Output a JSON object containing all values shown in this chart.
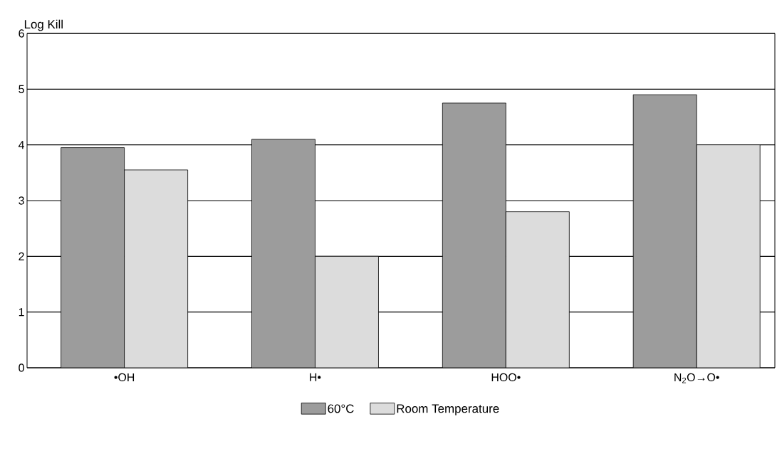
{
  "chart_data": {
    "type": "bar",
    "ylabel": "Log Kill",
    "categories": [
      "•OH",
      "H•",
      "HOO•",
      "N$_{2}$O→O•"
    ],
    "series": [
      {
        "name": "60°C",
        "color": "#9c9c9c",
        "values": [
          3.95,
          4.1,
          4.75,
          4.9
        ]
      },
      {
        "name": "Room Temperature",
        "color": "#dcdcdc",
        "values": [
          3.55,
          2.0,
          2.8,
          4.0
        ]
      }
    ],
    "ylim": [
      0,
      6
    ],
    "yticks": [
      0,
      1,
      2,
      3,
      4,
      5,
      6
    ],
    "grid": "y",
    "legend": "bottom"
  }
}
